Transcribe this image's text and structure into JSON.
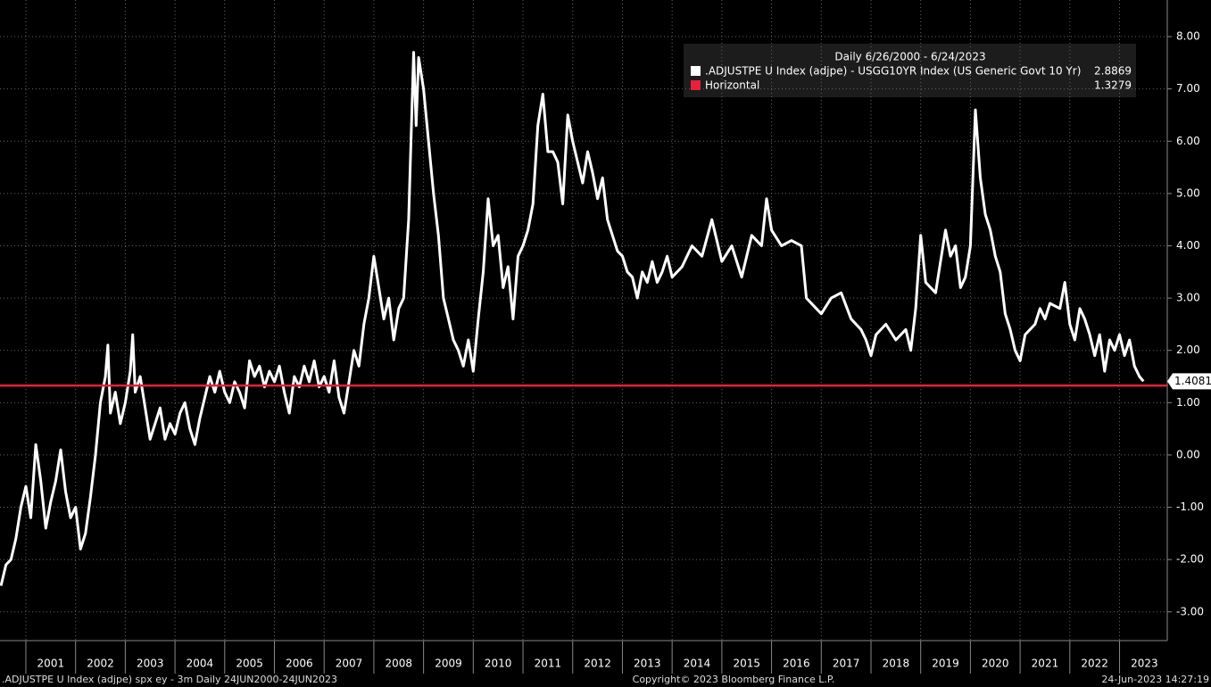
{
  "chart_data": {
    "type": "line",
    "legend_title": "Daily 6/26/2000 - 6/24/2023",
    "footer_left": ".ADJUSTPE U Index (adjpe) spx ey - 3m  Daily 24JUN2000-24JUN2023",
    "footer_center": "Copyright© 2023 Bloomberg Finance L.P.",
    "footer_right": "24-Jun-2023 14:27:19",
    "last_value_label": 1.4081,
    "xlim": [
      2000.48,
      2023.96
    ],
    "ylim": [
      -3.55,
      8.7
    ],
    "xticks": [
      2001,
      2002,
      2003,
      2004,
      2005,
      2006,
      2007,
      2008,
      2009,
      2010,
      2011,
      2012,
      2013,
      2014,
      2015,
      2016,
      2017,
      2018,
      2019,
      2020,
      2021,
      2022,
      2023
    ],
    "yticks": [
      {
        "value": 8,
        "label": "8.00"
      },
      {
        "value": 7,
        "label": "7.00"
      },
      {
        "value": 6,
        "label": "6.00"
      },
      {
        "value": 5,
        "label": "5.00"
      },
      {
        "value": 4,
        "label": "4.00"
      },
      {
        "value": 3,
        "label": "3.00"
      },
      {
        "value": 2,
        "label": "2.00"
      },
      {
        "value": 1,
        "label": "1.00"
      },
      {
        "value": 0,
        "label": "0.00"
      },
      {
        "value": -1,
        "label": "-1.00"
      },
      {
        "value": -2,
        "label": "-2.00"
      },
      {
        "value": -3,
        "label": "-3.00"
      }
    ],
    "grid": true,
    "series": [
      {
        "name": ".ADJUSTPE U Index (adjpe) - USGG10YR Index (US Generic Govt 10 Yr)",
        "color": "#ffffff",
        "legend_value": 2.8869,
        "x": [
          2000.5,
          2000.6,
          2000.7,
          2000.8,
          2000.9,
          2001.0,
          2001.1,
          2001.2,
          2001.3,
          2001.4,
          2001.5,
          2001.6,
          2001.7,
          2001.8,
          2001.9,
          2002.0,
          2002.1,
          2002.2,
          2002.3,
          2002.4,
          2002.5,
          2002.6,
          2002.65,
          2002.7,
          2002.8,
          2002.9,
          2003.0,
          2003.1,
          2003.15,
          2003.2,
          2003.3,
          2003.4,
          2003.5,
          2003.6,
          2003.7,
          2003.8,
          2003.9,
          2004.0,
          2004.1,
          2004.2,
          2004.3,
          2004.4,
          2004.5,
          2004.6,
          2004.7,
          2004.8,
          2004.9,
          2005.0,
          2005.1,
          2005.2,
          2005.3,
          2005.4,
          2005.5,
          2005.6,
          2005.7,
          2005.8,
          2005.9,
          2006.0,
          2006.1,
          2006.2,
          2006.3,
          2006.4,
          2006.5,
          2006.6,
          2006.7,
          2006.8,
          2006.9,
          2007.0,
          2007.1,
          2007.2,
          2007.3,
          2007.4,
          2007.5,
          2007.6,
          2007.7,
          2007.8,
          2007.9,
          2008.0,
          2008.1,
          2008.2,
          2008.3,
          2008.4,
          2008.5,
          2008.6,
          2008.7,
          2008.8,
          2008.85,
          2008.9,
          2009.0,
          2009.1,
          2009.2,
          2009.3,
          2009.4,
          2009.5,
          2009.6,
          2009.7,
          2009.8,
          2009.9,
          2010.0,
          2010.1,
          2010.2,
          2010.3,
          2010.4,
          2010.5,
          2010.6,
          2010.7,
          2010.8,
          2010.9,
          2011.0,
          2011.1,
          2011.2,
          2011.3,
          2011.4,
          2011.5,
          2011.6,
          2011.7,
          2011.8,
          2011.9,
          2012.0,
          2012.1,
          2012.2,
          2012.3,
          2012.4,
          2012.5,
          2012.6,
          2012.7,
          2012.8,
          2012.9,
          2013.0,
          2013.1,
          2013.2,
          2013.3,
          2013.4,
          2013.5,
          2013.6,
          2013.7,
          2013.8,
          2013.9,
          2014.0,
          2014.2,
          2014.4,
          2014.6,
          2014.8,
          2015.0,
          2015.2,
          2015.4,
          2015.6,
          2015.8,
          2015.9,
          2016.0,
          2016.2,
          2016.4,
          2016.6,
          2016.7,
          2016.9,
          2017.0,
          2017.2,
          2017.4,
          2017.6,
          2017.8,
          2017.9,
          2018.0,
          2018.1,
          2018.3,
          2018.5,
          2018.7,
          2018.8,
          2018.9,
          2019.0,
          2019.1,
          2019.3,
          2019.5,
          2019.6,
          2019.7,
          2019.8,
          2019.9,
          2020.0,
          2020.1,
          2020.2,
          2020.3,
          2020.4,
          2020.5,
          2020.6,
          2020.7,
          2020.8,
          2020.9,
          2021.0,
          2021.1,
          2021.3,
          2021.4,
          2021.5,
          2021.6,
          2021.8,
          2021.9,
          2022.0,
          2022.1,
          2022.2,
          2022.3,
          2022.4,
          2022.5,
          2022.6,
          2022.7,
          2022.8,
          2022.9,
          2023.0,
          2023.1,
          2023.2,
          2023.3,
          2023.4,
          2023.48
        ],
        "values": [
          -2.5,
          -2.1,
          -2.0,
          -1.6,
          -1.0,
          -0.6,
          -1.2,
          0.2,
          -0.5,
          -1.4,
          -0.9,
          -0.5,
          0.1,
          -0.7,
          -1.2,
          -1.0,
          -1.8,
          -1.5,
          -0.8,
          0.0,
          1.0,
          1.5,
          2.1,
          0.8,
          1.2,
          0.6,
          1.0,
          1.6,
          2.3,
          1.2,
          1.5,
          0.9,
          0.3,
          0.6,
          0.9,
          0.3,
          0.6,
          0.4,
          0.8,
          1.0,
          0.5,
          0.2,
          0.7,
          1.1,
          1.5,
          1.2,
          1.6,
          1.2,
          1.0,
          1.4,
          1.2,
          0.9,
          1.8,
          1.5,
          1.7,
          1.3,
          1.6,
          1.4,
          1.7,
          1.2,
          0.8,
          1.5,
          1.3,
          1.7,
          1.4,
          1.8,
          1.3,
          1.5,
          1.2,
          1.8,
          1.1,
          0.8,
          1.4,
          2.0,
          1.7,
          2.5,
          3.0,
          3.8,
          3.2,
          2.6,
          3.0,
          2.2,
          2.8,
          3.0,
          4.5,
          7.7,
          6.3,
          7.6,
          7.0,
          6.0,
          5.0,
          4.2,
          3.0,
          2.6,
          2.2,
          2.0,
          1.7,
          2.2,
          1.6,
          2.6,
          3.5,
          4.9,
          4.0,
          4.2,
          3.2,
          3.6,
          2.6,
          3.8,
          4.0,
          4.3,
          4.8,
          6.3,
          6.9,
          5.8,
          5.8,
          5.6,
          4.8,
          6.5,
          6.0,
          5.6,
          5.2,
          5.8,
          5.4,
          4.9,
          5.3,
          4.5,
          4.2,
          3.9,
          3.8,
          3.5,
          3.4,
          3.0,
          3.5,
          3.3,
          3.7,
          3.3,
          3.5,
          3.8,
          3.4,
          3.6,
          4.0,
          3.8,
          4.5,
          3.7,
          4.0,
          3.4,
          4.2,
          4.0,
          4.9,
          4.3,
          4.0,
          4.1,
          4.0,
          3.0,
          2.8,
          2.7,
          3.0,
          3.1,
          2.6,
          2.4,
          2.2,
          1.9,
          2.3,
          2.5,
          2.2,
          2.4,
          2.0,
          2.8,
          4.2,
          3.3,
          3.1,
          4.3,
          3.8,
          4.0,
          3.2,
          3.4,
          4.0,
          6.6,
          5.3,
          4.6,
          4.3,
          3.8,
          3.5,
          2.7,
          2.4,
          2.0,
          1.8,
          2.3,
          2.5,
          2.8,
          2.6,
          2.9,
          2.8,
          3.3,
          2.5,
          2.2,
          2.8,
          2.6,
          2.3,
          1.9,
          2.3,
          1.6,
          2.2,
          2.0,
          2.3,
          1.9,
          2.2,
          1.7,
          1.5,
          1.41
        ]
      },
      {
        "name": "Horizontal",
        "color": "#e8203a",
        "values": [
          1.3279
        ]
      }
    ]
  }
}
